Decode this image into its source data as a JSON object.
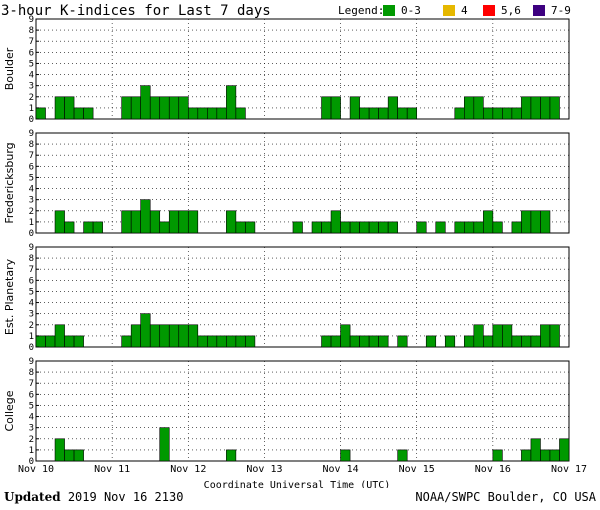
{
  "chart_data": {
    "type": "bar",
    "title": "3-hour K-indices for Last 7 days",
    "legend": {
      "label": "Legend:",
      "placement": "top-right",
      "entries": [
        {
          "label": "0-3",
          "color": "#009900"
        },
        {
          "label": "4",
          "color": "#e6b800"
        },
        {
          "label": "5,6",
          "color": "#ff0000"
        },
        {
          "label": "7-9",
          "color": "#3d0080"
        }
      ]
    },
    "xlabel": "Coordinate Universal Time (UTC)",
    "x_ticks": [
      "Nov 10",
      "Nov 11",
      "Nov 12",
      "Nov 13",
      "Nov 14",
      "Nov 15",
      "Nov 16",
      "Nov 17"
    ],
    "ylim": [
      0,
      9
    ],
    "y_ticks": [
      0,
      1,
      2,
      3,
      4,
      5,
      6,
      7,
      8,
      9
    ],
    "bars_per_day": 8,
    "grid": true,
    "series": [
      {
        "name": "Boulder",
        "values": [
          1,
          0,
          2,
          2,
          1,
          1,
          0,
          0,
          0,
          2,
          2,
          3,
          2,
          2,
          2,
          2,
          1,
          1,
          1,
          1,
          3,
          1,
          0,
          0,
          0,
          0,
          0,
          0,
          0,
          0,
          2,
          2,
          0,
          2,
          1,
          1,
          1,
          2,
          1,
          1,
          0,
          0,
          0,
          0,
          1,
          2,
          2,
          1,
          1,
          1,
          1,
          2,
          2,
          2,
          2,
          0
        ]
      },
      {
        "name": "Fredericksburg",
        "values": [
          0,
          0,
          2,
          1,
          0,
          1,
          1,
          0,
          0,
          2,
          2,
          3,
          2,
          1,
          2,
          2,
          2,
          0,
          0,
          0,
          2,
          1,
          1,
          0,
          0,
          0,
          0,
          1,
          0,
          1,
          1,
          2,
          1,
          1,
          1,
          1,
          1,
          1,
          0,
          0,
          1,
          0,
          1,
          0,
          1,
          1,
          1,
          2,
          1,
          0,
          1,
          2,
          2,
          2,
          0,
          0
        ]
      },
      {
        "name": "Est. Planetary",
        "values": [
          1,
          1,
          2,
          1,
          1,
          0,
          0,
          0,
          0,
          1,
          2,
          3,
          2,
          2,
          2,
          2,
          2,
          1,
          1,
          1,
          1,
          1,
          1,
          0,
          0,
          0,
          0,
          0,
          0,
          0,
          1,
          1,
          2,
          1,
          1,
          1,
          1,
          0,
          1,
          0,
          0,
          1,
          0,
          1,
          0,
          1,
          2,
          1,
          2,
          2,
          1,
          1,
          1,
          2,
          2,
          0
        ]
      },
      {
        "name": "College",
        "values": [
          0,
          0,
          2,
          1,
          1,
          0,
          0,
          0,
          0,
          0,
          0,
          0,
          0,
          3,
          0,
          0,
          0,
          0,
          0,
          0,
          1,
          0,
          0,
          0,
          0,
          0,
          0,
          0,
          0,
          0,
          0,
          0,
          1,
          0,
          0,
          0,
          0,
          0,
          1,
          0,
          0,
          0,
          0,
          0,
          0,
          0,
          0,
          0,
          1,
          0,
          0,
          1,
          2,
          1,
          1,
          2
        ]
      }
    ]
  },
  "footer": {
    "updated_label": "Updated",
    "updated_value": "2019 Nov 16 2130",
    "credit": "NOAA/SWPC Boulder, CO USA"
  }
}
